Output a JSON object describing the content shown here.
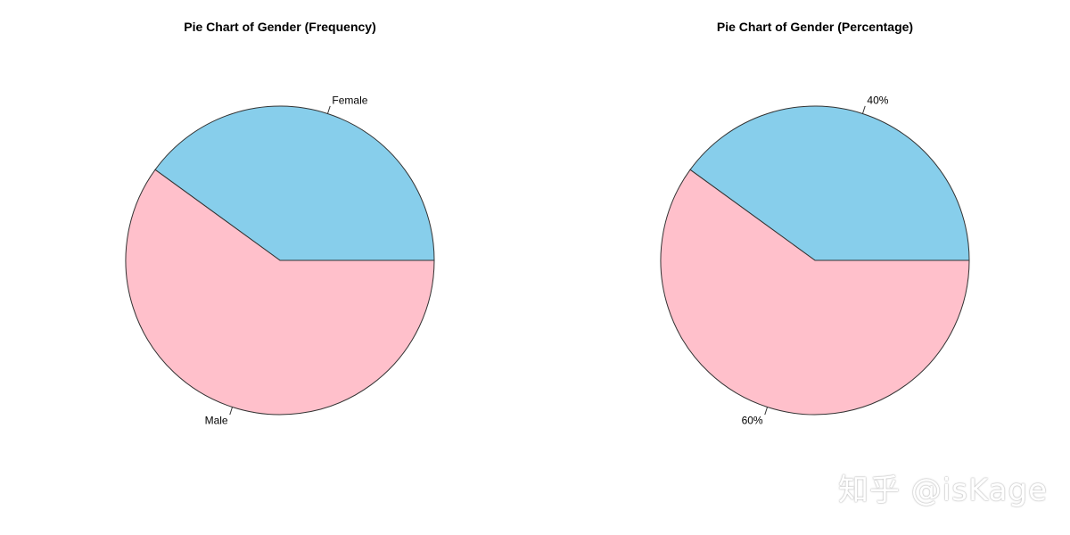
{
  "chart_data": [
    {
      "type": "pie",
      "title": "Pie Chart of Gender (Frequency)",
      "start_angle_deg": 0,
      "direction": "counterclockwise",
      "slices": [
        {
          "label": "Female",
          "value": 40,
          "color": "#87CEEB"
        },
        {
          "label": "Male",
          "value": 60,
          "color": "#FFC0CB"
        }
      ]
    },
    {
      "type": "pie",
      "title": "Pie Chart of Gender (Percentage)",
      "start_angle_deg": 0,
      "direction": "counterclockwise",
      "slices": [
        {
          "label": "40%",
          "value": 40,
          "color": "#87CEEB"
        },
        {
          "label": "60%",
          "value": 60,
          "color": "#FFC0CB"
        }
      ]
    }
  ],
  "watermark": "知乎 @isKage"
}
